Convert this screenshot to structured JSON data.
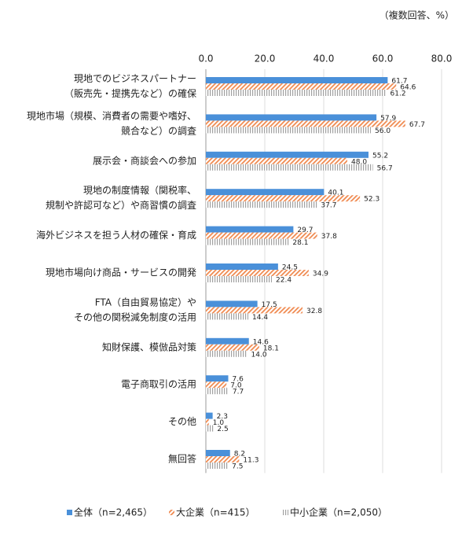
{
  "chart_data": {
    "type": "bar",
    "orientation": "horizontal",
    "unit_note": "（複数回答、%）",
    "categories": [
      [
        "現地でのビジネスパートナー",
        "（販売先・提携先など）の確保"
      ],
      [
        "現地市場（規模、消費者の需要や嗜好、",
        "競合など）の調査"
      ],
      [
        "展示会・商談会への参加"
      ],
      [
        "現地の制度情報（関税率、",
        "規制や許認可など）や商習慣の調査"
      ],
      [
        "海外ビジネスを担う人材の確保・育成"
      ],
      [
        "現地市場向け商品・サービスの開発"
      ],
      [
        "FTA（自由貿易協定）や",
        "その他の関税減免制度の活用"
      ],
      [
        "知財保護、模倣品対策"
      ],
      [
        "電子商取引の活用"
      ],
      [
        "その他"
      ],
      [
        "無回答"
      ]
    ],
    "series": [
      {
        "name": "全体（n=2,465）",
        "color": "#4a90d9",
        "pattern": "solid",
        "values": [
          61.7,
          57.9,
          55.2,
          40.1,
          29.7,
          24.5,
          17.5,
          14.6,
          7.6,
          2.3,
          8.2
        ],
        "value_labels": [
          "61.7",
          "57.9",
          "55.2",
          "40.1",
          "29.7",
          "24.5",
          "17.5",
          "14.6",
          "7.6",
          "2.3",
          "8.2"
        ]
      },
      {
        "name": "大企業（n=415）",
        "color": "#f08a50",
        "pattern": "diagonal",
        "values": [
          64.6,
          67.7,
          48.0,
          52.3,
          37.8,
          34.9,
          32.8,
          18.1,
          7.0,
          1.0,
          11.3
        ],
        "value_labels": [
          "64.6",
          "67.7",
          "48.0",
          "52.3",
          "37.8",
          "34.9",
          "32.8",
          "18.1",
          "7.0",
          "1.0",
          "11.3"
        ]
      },
      {
        "name": "中小企業（n=2,050）",
        "color": "#a0a0a0",
        "pattern": "vertical",
        "values": [
          61.2,
          56.0,
          56.7,
          37.7,
          28.1,
          22.4,
          14.4,
          14.0,
          7.7,
          2.5,
          7.5
        ],
        "value_labels": [
          "61.2",
          "56.0",
          "56.7",
          "37.7",
          "28.1",
          "22.4",
          "14.4",
          "14.0",
          "7.7",
          "2.5",
          "7.5"
        ]
      }
    ],
    "xlim": [
      0,
      80
    ],
    "xticks": [
      {
        "value": 0,
        "label": "0.0"
      },
      {
        "value": 20,
        "label": "20.0"
      },
      {
        "value": 40,
        "label": "40.0"
      },
      {
        "value": 60,
        "label": "60.0"
      },
      {
        "value": 80,
        "label": "80.0"
      }
    ],
    "grid": true
  }
}
